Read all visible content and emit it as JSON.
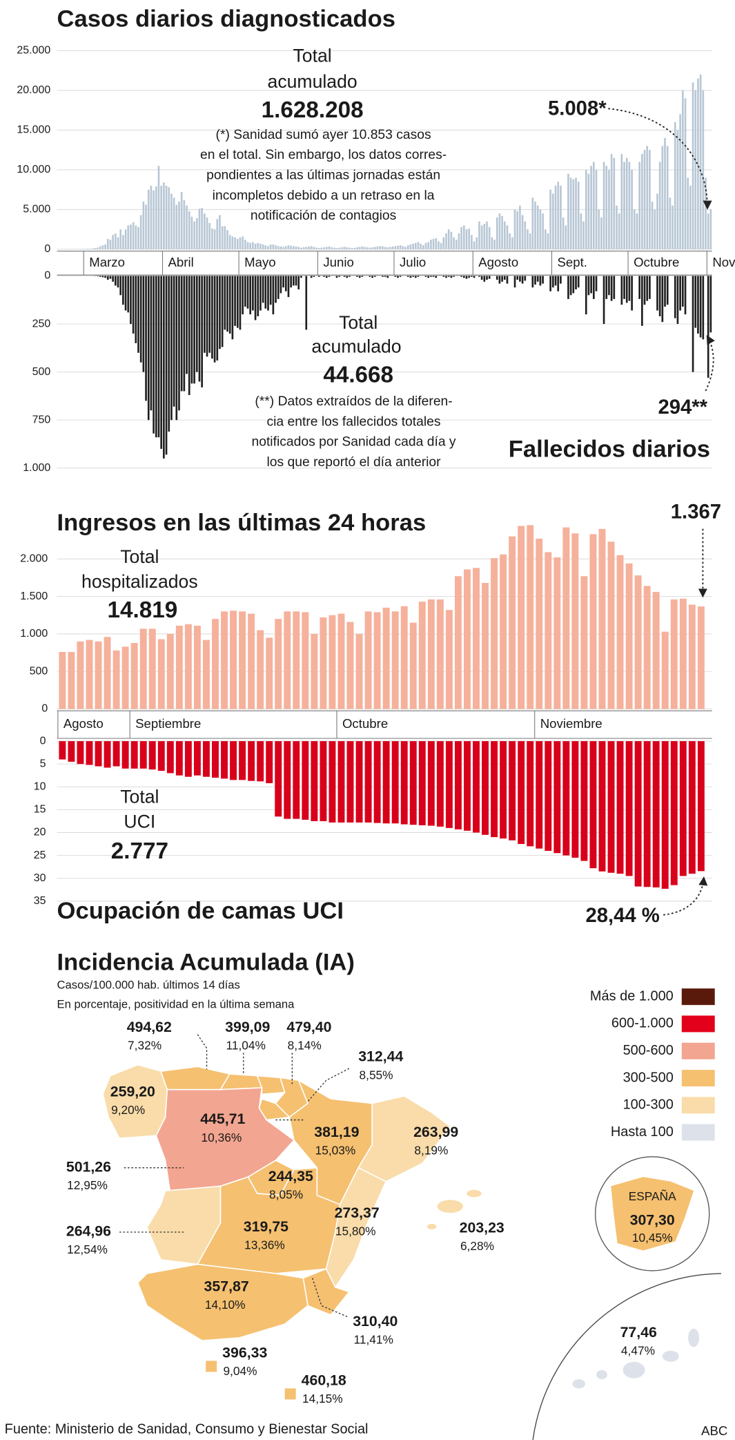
{
  "chart_data": [
    {
      "type": "bar",
      "title": "Casos diarios diagnosticados",
      "color": "#b8c7d5",
      "grid": true,
      "ylim": [
        0,
        25000
      ],
      "yticks": [
        0,
        {
          "value": 5000,
          "label": "5.000"
        },
        {
          "value": 10000,
          "label": "10.000"
        },
        {
          "value": 15000,
          "label": "15.000"
        },
        {
          "value": 20000,
          "label": "20.000"
        },
        {
          "value": 25000,
          "label": "25.000"
        }
      ],
      "categories": [
        null,
        null,
        null,
        null,
        "Marzo",
        null,
        null,
        null,
        null,
        null,
        null,
        null,
        null,
        null,
        null,
        null,
        null,
        null,
        null,
        null,
        null,
        null,
        null,
        null,
        null,
        null,
        null,
        null,
        null,
        null,
        null,
        null,
        null,
        null,
        null,
        "Abril",
        null,
        null,
        null,
        null,
        null,
        null,
        null,
        null,
        null,
        null,
        null,
        null,
        null,
        null,
        null,
        null,
        null,
        null,
        null,
        null,
        null,
        null,
        null,
        null,
        null,
        null,
        null,
        null,
        null,
        "Mayo",
        null,
        null,
        null,
        null,
        null,
        null,
        null,
        null,
        null,
        null,
        null,
        null,
        null,
        null,
        null,
        null,
        null,
        null,
        null,
        null,
        null,
        null,
        null,
        null,
        null,
        null,
        null,
        null,
        null,
        null,
        "Junio",
        null,
        null,
        null,
        null,
        null,
        null,
        null,
        null,
        null,
        null,
        null,
        null,
        null,
        null,
        null,
        null,
        null,
        null,
        null,
        null,
        null,
        null,
        null,
        null,
        null,
        null,
        null,
        null,
        null,
        "Julio",
        null,
        null,
        null,
        null,
        null,
        null,
        null,
        null,
        null,
        null,
        null,
        null,
        null,
        null,
        null,
        null,
        null,
        null,
        null,
        null,
        null,
        null,
        null,
        null,
        null,
        null,
        null,
        null,
        null,
        null,
        "Agosto",
        null,
        null,
        null,
        null,
        null,
        null,
        null,
        null,
        null,
        null,
        null,
        null,
        null,
        null,
        null,
        null,
        null,
        null,
        null,
        null,
        null,
        null,
        null,
        null,
        null,
        null,
        null,
        null,
        null,
        null,
        "Sept.",
        null,
        null,
        null,
        null,
        null,
        null,
        null,
        null,
        null,
        null,
        null,
        null,
        null,
        null,
        null,
        null,
        null,
        null,
        null,
        null,
        null,
        null,
        null,
        null,
        null,
        null,
        null,
        null,
        null,
        "Octubre",
        null,
        null,
        null,
        null,
        null,
        null,
        null,
        null,
        null,
        null,
        null,
        null,
        null,
        null,
        null,
        null,
        null,
        null,
        null,
        null,
        null,
        null,
        null,
        null,
        null,
        null,
        null,
        null,
        null,
        null,
        "Nov.",
        null
      ],
      "values": [
        10,
        20,
        30,
        50,
        30,
        60,
        70,
        100,
        150,
        200,
        380,
        500,
        600,
        1300,
        1200,
        1800,
        2000,
        1500,
        2500,
        1800,
        2500,
        3000,
        3100,
        3400,
        3000,
        2800,
        4300,
        6000,
        5600,
        7500,
        8000,
        7400,
        7900,
        10500,
        8000,
        8400,
        8000,
        7800,
        7000,
        6500,
        5600,
        6000,
        7200,
        6200,
        5500,
        4800,
        4100,
        3500,
        3900,
        5100,
        5200,
        4500,
        4000,
        3300,
        2600,
        2500,
        3800,
        4300,
        2900,
        2900,
        2400,
        1800,
        1600,
        1500,
        1300,
        1500,
        1600,
        1200,
        900,
        800,
        900,
        700,
        800,
        700,
        600,
        500,
        400,
        600,
        600,
        500,
        400,
        350,
        300,
        400,
        500,
        450,
        400,
        350,
        300,
        200,
        250,
        300,
        350,
        400,
        300,
        200,
        150,
        200,
        250,
        300,
        350,
        250,
        200,
        150,
        200,
        250,
        300,
        250,
        200,
        150,
        180,
        250,
        300,
        350,
        300,
        250,
        200,
        250,
        300,
        350,
        400,
        380,
        300,
        250,
        300,
        350,
        400,
        450,
        500,
        400,
        300,
        500,
        600,
        700,
        800,
        900,
        700,
        500,
        800,
        900,
        1200,
        1300,
        1400,
        1000,
        800,
        1500,
        2000,
        2500,
        2200,
        1500,
        1200,
        2000,
        2800,
        3000,
        2500,
        2600,
        1800,
        1000,
        1500,
        3500,
        3000,
        3200,
        3500,
        2800,
        1500,
        1200,
        4000,
        4500,
        4200,
        3500,
        3000,
        2000,
        1500,
        5000,
        4800,
        5500,
        4300,
        3500,
        2500,
        2000,
        6500,
        6000,
        5500,
        5000,
        4500,
        2500,
        2000,
        7500,
        7000,
        8000,
        8500,
        8000,
        4000,
        3000,
        9500,
        9000,
        8800,
        9000,
        8500,
        4500,
        3500,
        10000,
        9500,
        10500,
        11000,
        10000,
        5000,
        4000,
        11000,
        10500,
        10000,
        12000,
        11500,
        5500,
        4500,
        12000,
        11000,
        11500,
        11000,
        10000,
        5000,
        4500,
        11000,
        12000,
        12500,
        13000,
        12500,
        6000,
        5000,
        7000,
        11000,
        13000,
        14000,
        13000,
        6500,
        5500,
        16000,
        15000,
        17000,
        20000,
        19000,
        9000,
        8000,
        21000,
        20000,
        21500,
        22000,
        20000,
        9000,
        4500,
        5008
      ],
      "total_label": [
        "Total",
        "acumulado"
      ],
      "total": "1.628.208",
      "note": [
        "(*) Sanidad sumó ayer 10.853 casos",
        "en el total. Sin embargo, los datos corres-",
        "pondientes a las últimas jornadas están",
        "incompletos debido a un retraso en la",
        "notificación de contagios"
      ],
      "highlight": "5.008*"
    },
    {
      "type": "bar",
      "title": "Fallecidos diarios",
      "color": "#1f1f1f",
      "grid": true,
      "inverted": true,
      "ylim": [
        0,
        1000
      ],
      "yticks": [
        0,
        250,
        500,
        750,
        {
          "value": 1000,
          "label": "1.000"
        }
      ],
      "values": [
        0,
        0,
        0,
        0,
        0,
        0,
        0,
        0,
        1,
        2,
        5,
        7,
        10,
        20,
        15,
        30,
        50,
        60,
        100,
        150,
        180,
        190,
        250,
        300,
        350,
        400,
        450,
        500,
        650,
        750,
        700,
        820,
        840,
        840,
        900,
        950,
        930,
        810,
        750,
        680,
        750,
        700,
        600,
        600,
        510,
        620,
        560,
        560,
        500,
        550,
        580,
        400,
        420,
        400,
        430,
        450,
        440,
        380,
        370,
        280,
        290,
        300,
        330,
        260,
        270,
        280,
        200,
        160,
        170,
        200,
        180,
        230,
        210,
        180,
        140,
        170,
        180,
        150,
        200,
        140,
        120,
        90,
        60,
        80,
        110,
        60,
        50,
        50,
        70,
        10,
        0,
        280,
        0,
        10,
        5,
        0,
        5,
        0,
        5,
        10,
        5,
        0,
        0,
        10,
        5,
        0,
        5,
        10,
        5,
        0,
        0,
        5,
        10,
        5,
        0,
        0,
        5,
        10,
        5,
        0,
        0,
        5,
        5,
        10,
        0,
        0,
        5,
        10,
        5,
        0,
        0,
        5,
        10,
        5,
        10,
        5,
        0,
        0,
        5,
        10,
        5,
        5,
        10,
        0,
        0,
        5,
        10,
        5,
        10,
        5,
        0,
        0,
        5,
        10,
        15,
        10,
        5,
        10,
        0,
        5,
        20,
        30,
        20,
        15,
        0,
        0,
        20,
        40,
        30,
        20,
        40,
        0,
        0,
        60,
        20,
        30,
        40,
        25,
        0,
        0,
        60,
        45,
        30,
        50,
        40,
        0,
        0,
        80,
        60,
        50,
        80,
        40,
        0,
        0,
        120,
        100,
        90,
        70,
        60,
        0,
        0,
        200,
        100,
        90,
        120,
        80,
        0,
        0,
        250,
        120,
        100,
        130,
        120,
        0,
        0,
        150,
        120,
        140,
        130,
        180,
        0,
        0,
        120,
        260,
        150,
        130,
        120,
        0,
        0,
        180,
        210,
        240,
        160,
        150,
        0,
        0,
        220,
        250,
        180,
        160,
        200,
        0,
        0,
        500,
        270,
        300,
        320,
        330,
        0,
        530,
        294
      ],
      "total_label": [
        "Total",
        "acumulado"
      ],
      "total": "44.668",
      "note": [
        "(**) Datos extraídos de la diferen-",
        "cia entre los fallecidos totales",
        "notificados por Sanidad cada día y",
        "los que reportó el día anterior"
      ],
      "highlight": "294**"
    },
    {
      "type": "bar",
      "title": "Ingresos en las últimas 24 horas",
      "color": "#f5b19b",
      "grid": true,
      "ylim": [
        0,
        2500
      ],
      "yticks": [
        0,
        500,
        {
          "value": 1000,
          "label": "1.000"
        },
        {
          "value": 1500,
          "label": "1.500"
        },
        {
          "value": 2000,
          "label": "2.000"
        }
      ],
      "categories": [
        "Agosto",
        null,
        null,
        null,
        null,
        null,
        null,
        null,
        "Septiembre",
        null,
        null,
        null,
        null,
        null,
        null,
        null,
        null,
        null,
        null,
        null,
        null,
        null,
        null,
        null,
        null,
        null,
        null,
        null,
        null,
        null,
        null,
        "Octubre",
        null,
        null,
        null,
        null,
        null,
        null,
        null,
        null,
        null,
        null,
        null,
        null,
        null,
        null,
        null,
        null,
        null,
        null,
        null,
        null,
        null,
        "Noviembre",
        null,
        null,
        null,
        null,
        null,
        null,
        null,
        null,
        null,
        null,
        null,
        null,
        null,
        null,
        null,
        null,
        null,
        null
      ],
      "values": [
        760,
        760,
        900,
        920,
        900,
        960,
        780,
        830,
        880,
        1070,
        1070,
        930,
        1000,
        1110,
        1130,
        1110,
        920,
        1200,
        1300,
        1310,
        1300,
        1270,
        1050,
        950,
        1200,
        1300,
        1300,
        1290,
        1000,
        1220,
        1250,
        1270,
        1160,
        1000,
        1300,
        1290,
        1350,
        1300,
        1370,
        1150,
        1430,
        1460,
        1460,
        1320,
        1770,
        1860,
        1880,
        1680,
        2010,
        2060,
        2300,
        2440,
        2450,
        2270,
        2090,
        2020,
        2420,
        2340,
        1770,
        2330,
        2400,
        2230,
        2050,
        1940,
        1780,
        1640,
        1560,
        1030,
        1460,
        1470,
        1390,
        1367
      ],
      "total_label": [
        "Total",
        "hospitalizados"
      ],
      "total": "14.819",
      "highlight": "1.367"
    },
    {
      "type": "bar",
      "title": "Ocupación de camas UCI",
      "color": "#d8001a",
      "grid": true,
      "inverted": true,
      "ylim": [
        0,
        35
      ],
      "yticks": [
        0,
        5,
        10,
        15,
        20,
        25,
        30,
        35
      ],
      "values": [
        4,
        4.5,
        5,
        5.2,
        5.5,
        5.8,
        5.5,
        6,
        6,
        6,
        6.2,
        6.5,
        7,
        7.5,
        7.8,
        7.5,
        7.8,
        8,
        8.2,
        8.5,
        8.5,
        8.7,
        8.8,
        9.2,
        16.5,
        17,
        17,
        17.2,
        17.5,
        17.5,
        17.8,
        17.8,
        17.8,
        17.8,
        17.8,
        17.9,
        18,
        18,
        18.2,
        18.3,
        18.4,
        18.5,
        18.7,
        19,
        19.3,
        19.6,
        20,
        20.5,
        21,
        21.3,
        21.7,
        22.5,
        23,
        23.5,
        24,
        24.5,
        25,
        25.5,
        26.2,
        27.8,
        28.5,
        28.8,
        29,
        29.5,
        31.8,
        31.9,
        32,
        32.3,
        31.5,
        29.5,
        29,
        28.44
      ],
      "total_label": [
        "Total",
        "UCI"
      ],
      "total": "2.777",
      "highlight": "28,44 %"
    }
  ],
  "map": {
    "title": "Incidencia Acumulada (IA)",
    "subtitle": [
      "Casos/100.000 hab. últimos 14 días",
      "En porcentaje, positividad en la última semana"
    ],
    "legend": [
      {
        "label": "Más de 1.000",
        "color": "#5a1a0b"
      },
      {
        "label": "600-1.000",
        "color": "#e2001a"
      },
      {
        "label": "500-600",
        "color": "#f2a590"
      },
      {
        "label": "300-500",
        "color": "#f5c070"
      },
      {
        "label": "100-300",
        "color": "#f9dcaa"
      },
      {
        "label": "Hasta 100",
        "color": "#dde2ea"
      }
    ],
    "regions": [
      {
        "value": "494,62",
        "pct": "7,32%"
      },
      {
        "value": "399,09",
        "pct": "11,04%"
      },
      {
        "value": "479,40",
        "pct": "8,14%"
      },
      {
        "value": "312,44",
        "pct": "8,55%"
      },
      {
        "value": "259,20",
        "pct": "9,20%"
      },
      {
        "value": "445,71",
        "pct": "10,36%"
      },
      {
        "value": "381,19",
        "pct": "15,03%"
      },
      {
        "value": "263,99",
        "pct": "8,19%"
      },
      {
        "value": "501,26",
        "pct": "12,95%"
      },
      {
        "value": "244,35",
        "pct": "8,05%"
      },
      {
        "value": "273,37",
        "pct": "15,80%"
      },
      {
        "value": "203,23",
        "pct": "6,28%"
      },
      {
        "value": "264,96",
        "pct": "12,54%"
      },
      {
        "value": "319,75",
        "pct": "13,36%"
      },
      {
        "value": "357,87",
        "pct": "14,10%"
      },
      {
        "value": "310,40",
        "pct": "11,41%"
      },
      {
        "value": "396,33",
        "pct": "9,04%"
      },
      {
        "value": "460,18",
        "pct": "14,15%"
      },
      {
        "value": "77,46",
        "pct": "4,47%"
      }
    ],
    "spain": {
      "label": "ESPAÑA",
      "value": "307,30",
      "pct": "10,45%"
    }
  },
  "source": "Fuente: Ministerio de Sanidad, Consumo y Bienestar Social",
  "brand": "ABC"
}
